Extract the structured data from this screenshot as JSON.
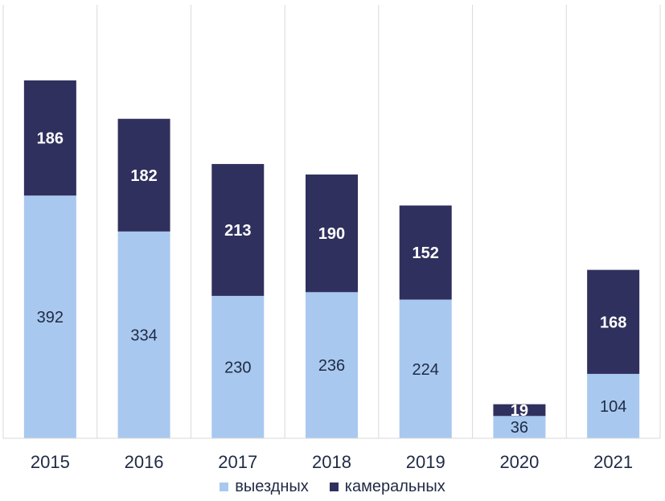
{
  "chart_data": {
    "type": "bar",
    "stacked": true,
    "title": "",
    "xlabel": "",
    "ylabel": "",
    "categories": [
      "2015",
      "2016",
      "2017",
      "2018",
      "2019",
      "2020",
      "2021"
    ],
    "series": [
      {
        "name": "выездных",
        "color": "#a8c8ef",
        "label_color": "#1f2a44",
        "values": [
          392,
          334,
          230,
          236,
          224,
          36,
          104
        ]
      },
      {
        "name": "камеральных",
        "color": "#30305e",
        "label_color": "#ffffff",
        "values": [
          186,
          182,
          213,
          190,
          152,
          19,
          168
        ]
      }
    ],
    "ylim": [
      0,
      700
    ],
    "grid": "vertical-separators",
    "legend_position": "bottom"
  }
}
